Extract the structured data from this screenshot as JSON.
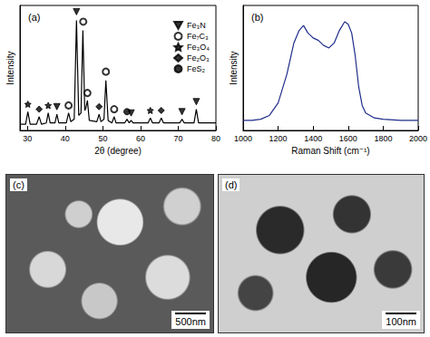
{
  "chart_data": [
    {
      "type": "line",
      "title": "(a)",
      "x_label": "2θ (degree)",
      "y_label": "Intensity",
      "color": "#000000",
      "x": [
        28,
        29.5,
        30.1,
        30.7,
        32.4,
        33.1,
        33.7,
        35,
        35.5,
        36,
        37.3,
        37.8,
        38.3,
        40.3,
        40.9,
        41.5,
        42.4,
        43.0,
        43.6,
        44.2,
        44.7,
        45.2,
        45.5,
        45.9,
        46.4,
        48.4,
        49.0,
        49.5,
        50.3,
        50.8,
        51.4,
        52.4,
        53.0,
        53.5,
        55.8,
        56.4,
        57,
        57.5,
        58,
        62,
        62.6,
        63.2,
        64.9,
        65.5,
        66.1,
        70.4,
        71,
        71.6,
        74.2,
        74.8,
        75.4,
        80
      ],
      "values": [
        5,
        5,
        15,
        5,
        5,
        11,
        5,
        6,
        14,
        6,
        6,
        13,
        6,
        6,
        14,
        7,
        9,
        88,
        12,
        14,
        80,
        16,
        18,
        24,
        8,
        7,
        13,
        7,
        9,
        40,
        8,
        6,
        11,
        6,
        6,
        9,
        6,
        8,
        6,
        6,
        10,
        6,
        6,
        10,
        6,
        6,
        9,
        6,
        6,
        17,
        6,
        6
      ],
      "xlim": [
        28,
        80
      ],
      "xticks": [
        30,
        40,
        50,
        60,
        70,
        80
      ],
      "ylim": [
        0,
        100
      ],
      "tick_labels": "x",
      "legend": "upper right",
      "series": [
        {
          "name": "Fe₃N",
          "type": "scatter",
          "marker": "triangle_down",
          "color": "#000000",
          "x": [
            43,
            37.8,
            57.5,
            71,
            74.8
          ],
          "values": [
            95,
            19,
            14,
            15,
            23
          ]
        },
        {
          "name": "Fe₇C₃",
          "type": "scatter",
          "marker": "circle_open",
          "color": "#000000",
          "x": [
            44.8,
            40.9,
            45.9,
            50.8,
            53
          ],
          "values": [
            87,
            20,
            30,
            47,
            17
          ]
        },
        {
          "name": "Fe₃O₄",
          "type": "scatter",
          "marker": "star",
          "color": "#000000",
          "x": [
            30.1,
            35.5,
            62.6
          ],
          "values": [
            21,
            20,
            16
          ]
        },
        {
          "name": "Fe₂O₃",
          "type": "scatter",
          "marker": "diamond",
          "color": "#000000",
          "x": [
            33.1,
            49,
            65.5
          ],
          "values": [
            17,
            19,
            16
          ]
        },
        {
          "name": "FeS₂",
          "type": "scatter",
          "marker": "circle",
          "color": "#000000",
          "x": [
            56.4
          ],
          "values": [
            15
          ]
        }
      ]
    },
    {
      "type": "line",
      "title": "(b)",
      "x_label": "Raman Shift (cm⁻¹)",
      "y_label": "Intensity",
      "color": "#1f2d8a",
      "x": [
        1000,
        1050,
        1100,
        1150,
        1200,
        1250,
        1290,
        1320,
        1345,
        1370,
        1400,
        1430,
        1460,
        1490,
        1520,
        1550,
        1580,
        1600,
        1620,
        1640,
        1660,
        1680,
        1700,
        1750,
        1800,
        1900,
        2000
      ],
      "values": [
        0.08,
        0.08,
        0.09,
        0.12,
        0.22,
        0.45,
        0.7,
        0.8,
        0.84,
        0.78,
        0.74,
        0.72,
        0.68,
        0.66,
        0.7,
        0.8,
        0.87,
        0.85,
        0.78,
        0.6,
        0.35,
        0.2,
        0.14,
        0.1,
        0.09,
        0.08,
        0.08
      ],
      "xlim": [
        1000,
        2000
      ],
      "xticks": [
        1000,
        1200,
        1400,
        1600,
        1800,
        2000
      ],
      "ylim": [
        0,
        1
      ],
      "tick_labels": "x"
    }
  ],
  "images": [
    {
      "label": "(c)",
      "scale_bar": "500nm"
    },
    {
      "label": "(d)",
      "scale_bar": "100nm"
    }
  ]
}
